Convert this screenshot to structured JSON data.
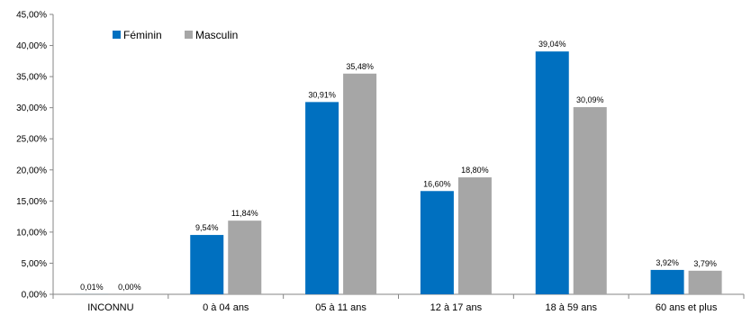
{
  "chart_data": {
    "type": "bar",
    "categories": [
      "INCONNU",
      "0 à 04 ans",
      "05 à 11 ans",
      "12 à 17 ans",
      "18 à 59 ans",
      "60 ans et plus"
    ],
    "series": [
      {
        "name": "Féminin",
        "color": "#0070C0",
        "values": [
          0.01,
          9.54,
          30.91,
          16.6,
          39.04,
          3.92
        ],
        "labels": [
          "0,01%",
          "9,54%",
          "30,91%",
          "16,60%",
          "39,04%",
          "3,92%"
        ]
      },
      {
        "name": "Masculin",
        "color": "#A6A6A6",
        "values": [
          0.0,
          11.84,
          35.48,
          18.8,
          30.09,
          3.79
        ],
        "labels": [
          "0,00%",
          "11,84%",
          "35,48%",
          "18,80%",
          "30,09%",
          "3,79%"
        ]
      }
    ],
    "y_ticks": [
      0,
      5,
      10,
      15,
      20,
      25,
      30,
      35,
      40,
      45
    ],
    "y_tick_labels": [
      "0,00%",
      "5,00%",
      "10,00%",
      "15,00%",
      "20,00%",
      "25,00%",
      "30,00%",
      "35,00%",
      "40,00%",
      "45,00%"
    ],
    "ylim": [
      0,
      45
    ],
    "grid": false,
    "legend_position": "top-left"
  }
}
